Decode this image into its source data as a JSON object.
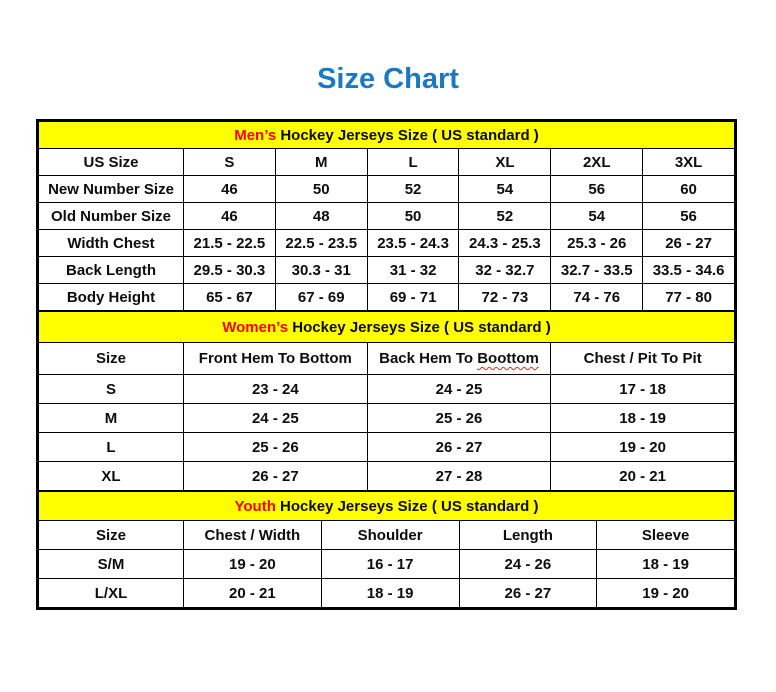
{
  "page_title": "Size Chart",
  "colors": {
    "title_blue": "#1b79c3",
    "section_yellow": "#ffff00",
    "accent_red": "#ff0000"
  },
  "tables": [
    {
      "id": "mens",
      "title_accent": "Men’s",
      "title_rest": "Hockey Jerseys Size ( US standard )",
      "columns": [
        {
          "label": "US Size"
        },
        {
          "label": "S"
        },
        {
          "label": "M"
        },
        {
          "label": "L"
        },
        {
          "label": "XL"
        },
        {
          "label": "2XL"
        },
        {
          "label": "3XL"
        }
      ],
      "rows": [
        {
          "label": "New Number Size",
          "values": [
            "46",
            "50",
            "52",
            "54",
            "56",
            "60"
          ]
        },
        {
          "label": "Old Number Size",
          "values": [
            "46",
            "48",
            "50",
            "52",
            "54",
            "56"
          ]
        },
        {
          "label": "Width Chest",
          "values": [
            "21.5 - 22.5",
            "22.5 - 23.5",
            "23.5 - 24.3",
            "24.3 - 25.3",
            "25.3 - 26",
            "26 - 27"
          ]
        },
        {
          "label": "Back Length",
          "values": [
            "29.5 - 30.3",
            "30.3 - 31",
            "31 - 32",
            "32 - 32.7",
            "32.7 - 33.5",
            "33.5 - 34.6"
          ]
        },
        {
          "label": "Body Height",
          "values": [
            "65 - 67",
            "67 - 69",
            "69 - 71",
            "72 - 73",
            "74 - 76",
            "77 - 80"
          ]
        }
      ]
    },
    {
      "id": "womens",
      "title_accent": "Women’s",
      "title_rest": "Hockey Jerseys Size ( US standard )",
      "columns": [
        {
          "label": "Size"
        },
        {
          "label": "Front Hem To Bottom"
        },
        {
          "label": "Back Hem To",
          "flagged_word": "Boottom"
        },
        {
          "label": "Chest / Pit To Pit"
        }
      ],
      "rows": [
        {
          "label": "S",
          "values": [
            "23 - 24",
            "24 - 25",
            "17 - 18"
          ]
        },
        {
          "label": "M",
          "values": [
            "24 - 25",
            "25 - 26",
            "18 - 19"
          ]
        },
        {
          "label": "L",
          "values": [
            "25 - 26",
            "26 - 27",
            "19 - 20"
          ]
        },
        {
          "label": "XL",
          "values": [
            "26 - 27",
            "27 - 28",
            "20 - 21"
          ]
        }
      ]
    },
    {
      "id": "youth",
      "title_accent": "Youth",
      "title_rest": "Hockey Jerseys Size ( US standard )",
      "columns": [
        {
          "label": "Size"
        },
        {
          "label": "Chest / Width"
        },
        {
          "label": "Shoulder"
        },
        {
          "label": "Length"
        },
        {
          "label": "Sleeve"
        }
      ],
      "rows": [
        {
          "label": "S/M",
          "values": [
            "19 - 20",
            "16 - 17",
            "24 - 26",
            "18 - 19"
          ]
        },
        {
          "label": "L/XL",
          "values": [
            "20 - 21",
            "18 - 19",
            "26 - 27",
            "19 - 20"
          ]
        }
      ]
    }
  ]
}
